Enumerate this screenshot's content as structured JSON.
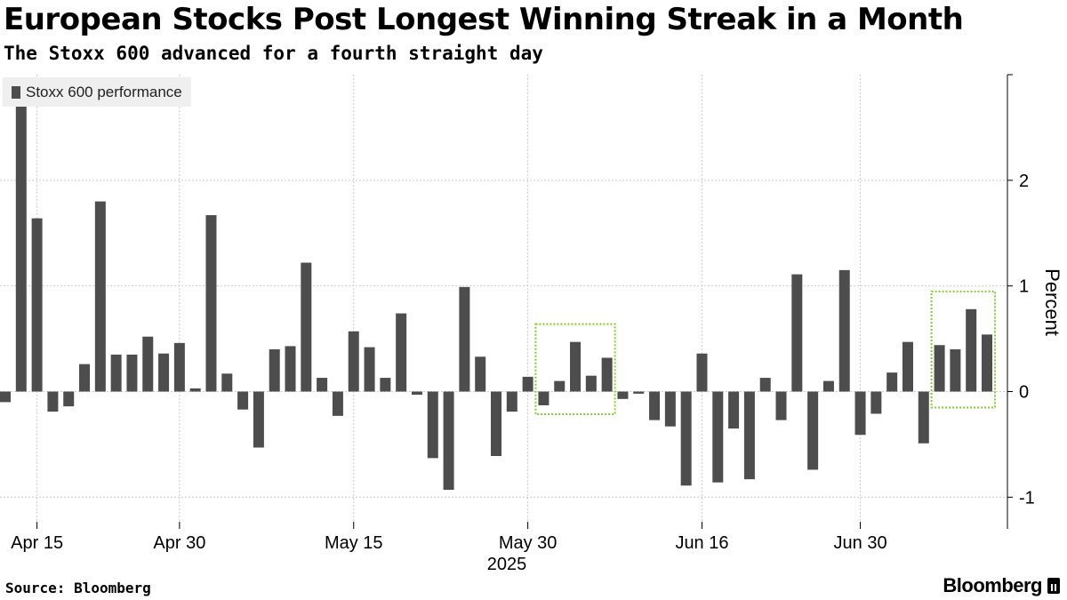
{
  "header": {
    "title": "European Stocks Post Longest Winning Streak in a Month",
    "subtitle": "The Stoxx 600 advanced for a fourth straight day"
  },
  "legend": {
    "label": "Stoxx 600 performance"
  },
  "footer": {
    "source": "Source: Bloomberg",
    "brand": "Bloomberg"
  },
  "colors": {
    "bar": "#4d4d4d",
    "highlight": "#7ed321",
    "grid": "#cccccc"
  },
  "chart_data": {
    "type": "bar",
    "title": "European Stocks Post Longest Winning Streak in a Month",
    "subtitle": "The Stoxx 600 advanced for a fourth straight day",
    "ylabel": "Percent",
    "xlabel": "2025",
    "ylim": [
      -1.3,
      3.0
    ],
    "yticks": [
      "2",
      "1",
      "0",
      "-1"
    ],
    "ytick_values": [
      2,
      1,
      0,
      -1
    ],
    "xticks": [
      {
        "label": "Apr 15",
        "index": 2
      },
      {
        "label": "Apr 30",
        "index": 11
      },
      {
        "label": "May 15",
        "index": 22
      },
      {
        "label": "May 30",
        "index": 33
      },
      {
        "label": "Jun 16",
        "index": 44
      },
      {
        "label": "Jun 30",
        "index": 54
      }
    ],
    "grid": true,
    "legend_position": "top-left",
    "series": [
      {
        "name": "Stoxx 600 performance",
        "values": [
          -0.1,
          2.7,
          1.64,
          -0.19,
          -0.14,
          0.26,
          1.8,
          0.35,
          0.35,
          0.52,
          0.36,
          0.46,
          0.03,
          1.67,
          0.17,
          -0.17,
          -0.53,
          0.4,
          0.43,
          1.22,
          0.13,
          -0.23,
          0.57,
          0.42,
          0.13,
          0.74,
          -0.03,
          -0.63,
          -0.93,
          0.99,
          0.33,
          -0.61,
          -0.19,
          0.14,
          -0.13,
          0.1,
          0.47,
          0.15,
          0.32,
          -0.07,
          -0.02,
          -0.27,
          -0.33,
          -0.89,
          0.36,
          -0.86,
          -0.35,
          -0.83,
          0.13,
          -0.27,
          1.11,
          -0.74,
          0.1,
          1.15,
          -0.41,
          -0.21,
          0.18,
          0.47,
          -0.49,
          0.44,
          0.4,
          0.78,
          0.54
        ]
      }
    ],
    "highlights": [
      {
        "start_index": 34,
        "end_index": 38
      },
      {
        "start_index": 59,
        "end_index": 62
      }
    ]
  }
}
